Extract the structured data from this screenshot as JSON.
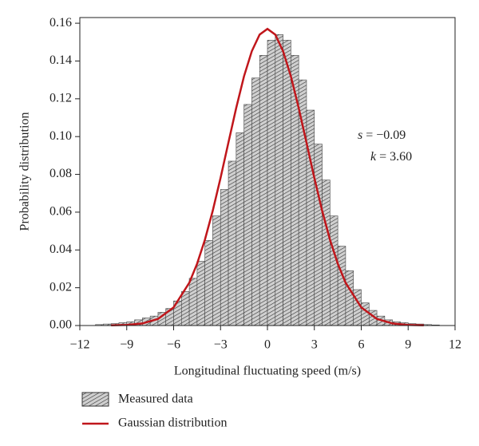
{
  "chart_data": {
    "type": "histogram",
    "x_label": "Longitudinal fluctuating speed (m/s)",
    "y_label": "Probability distribution",
    "xlim": [
      -12,
      12
    ],
    "xticks": [
      {
        "value": -12,
        "label": "−12"
      },
      {
        "value": -9,
        "label": "−9"
      },
      {
        "value": -6,
        "label": "−6"
      },
      {
        "value": -3,
        "label": "−3"
      },
      0,
      3,
      6,
      9,
      12
    ],
    "ylim": [
      0,
      0.163
    ],
    "yticks": [
      {
        "value": 0,
        "label": "0.00"
      },
      {
        "value": 0.02,
        "label": "0.02"
      },
      {
        "value": 0.04,
        "label": "0.04"
      },
      {
        "value": 0.06,
        "label": "0.06"
      },
      {
        "value": 0.08,
        "label": "0.08"
      },
      {
        "value": 0.1,
        "label": "0.10"
      },
      {
        "value": 0.12,
        "label": "0.12"
      },
      {
        "value": 0.14,
        "label": "0.14"
      },
      {
        "value": 0.16,
        "label": "0.16"
      }
    ],
    "histogram": {
      "name": "Measured data",
      "color": "#c8c8c8",
      "bins": [
        -11,
        -10.5,
        -10,
        -9.5,
        -9,
        -8.5,
        -8,
        -7.5,
        -7,
        -6.5,
        -6,
        -5.5,
        -5,
        -4.5,
        -4,
        -3.5,
        -3,
        -2.5,
        -2,
        -1.5,
        -1,
        -0.5,
        0,
        0.5,
        1,
        1.5,
        2,
        2.5,
        3,
        3.5,
        4,
        4.5,
        5,
        5.5,
        6,
        6.5,
        7,
        7.5,
        8,
        8.5,
        9,
        9.5,
        10,
        10.5,
        11
      ],
      "values": [
        0.0005,
        0.0008,
        0.001,
        0.0015,
        0.002,
        0.003,
        0.004,
        0.005,
        0.007,
        0.009,
        0.013,
        0.018,
        0.025,
        0.034,
        0.045,
        0.058,
        0.072,
        0.087,
        0.102,
        0.117,
        0.131,
        0.143,
        0.151,
        0.154,
        0.151,
        0.143,
        0.13,
        0.114,
        0.096,
        0.077,
        0.058,
        0.042,
        0.029,
        0.019,
        0.012,
        0.008,
        0.005,
        0.003,
        0.002,
        0.0015,
        0.001,
        0.0008,
        0.0005,
        0.0003
      ]
    },
    "line": {
      "name": "Gaussian distribution",
      "color": "#c0161b",
      "x": [
        -10,
        -9,
        -8,
        -7,
        -6,
        -5,
        -4.5,
        -4,
        -3.5,
        -3,
        -2.5,
        -2,
        -1.5,
        -1,
        -0.5,
        0,
        0.5,
        1,
        1.5,
        2,
        2.5,
        3,
        3.5,
        4,
        4.5,
        5,
        6,
        7,
        8,
        9,
        10
      ],
      "values": [
        0.0001,
        0.0003,
        0.0011,
        0.0035,
        0.0096,
        0.0226,
        0.0327,
        0.0454,
        0.0607,
        0.0781,
        0.0967,
        0.1151,
        0.1319,
        0.1452,
        0.154,
        0.157,
        0.154,
        0.1452,
        0.1319,
        0.1151,
        0.0967,
        0.0781,
        0.0607,
        0.0454,
        0.0327,
        0.0226,
        0.0096,
        0.0035,
        0.0011,
        0.0003,
        0.0001
      ]
    },
    "annotations": [
      {
        "symbol": "s",
        "text": " = −0.09"
      },
      {
        "symbol": "k",
        "text": " = 3.60"
      }
    ]
  }
}
